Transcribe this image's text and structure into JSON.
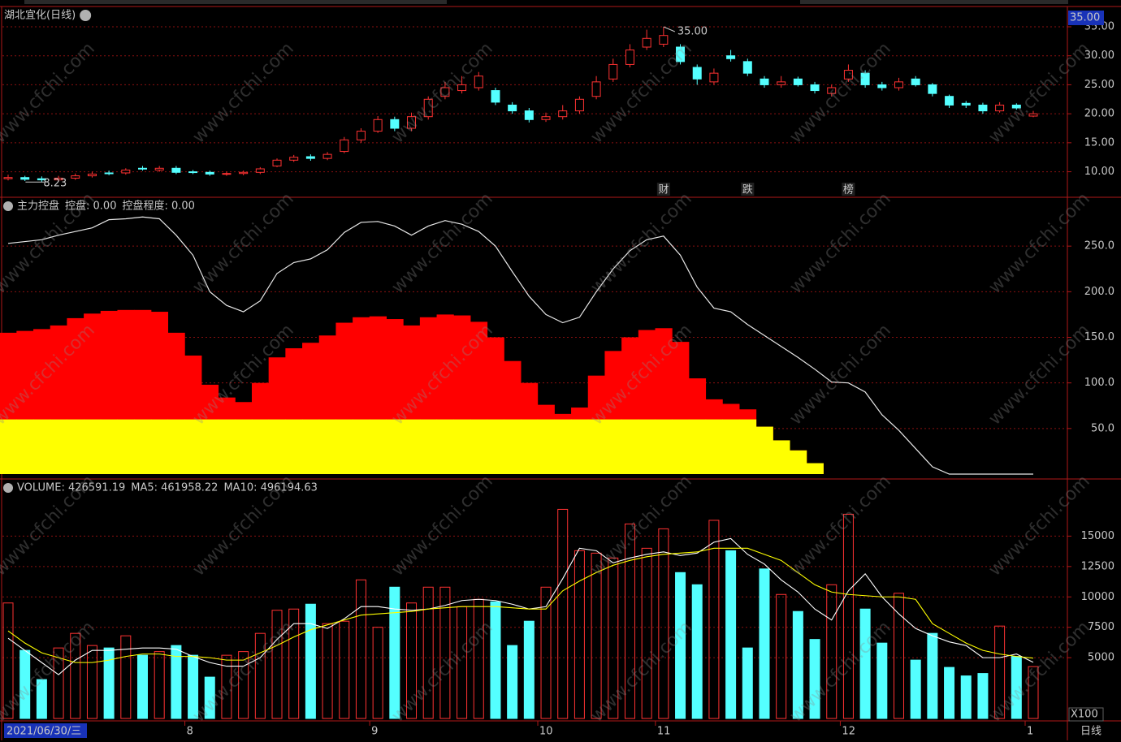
{
  "chart_data": [
    {
      "type": "candlestick",
      "title": "湖北宜化(日线)",
      "open": [
        8.8,
        9.0,
        8.8,
        8.6,
        8.9,
        9.3,
        9.8,
        9.8,
        10.6,
        10.3,
        10.6,
        10.0,
        9.9,
        9.6,
        9.7,
        9.9,
        11.0,
        12.0,
        12.6,
        12.3,
        13.5,
        15.5,
        17.0,
        19.0,
        17.5,
        19.5,
        23.0,
        24.0,
        24.5,
        24.0,
        21.5,
        20.5,
        19.0,
        19.5,
        20.5,
        23.0,
        26.0,
        28.5,
        31.5,
        32.0,
        31.5,
        28.0,
        25.5,
        30.0,
        29.0,
        26.0,
        25.0,
        26.0,
        25.0,
        23.5,
        26.0,
        27.0,
        25.0,
        24.5,
        26.0,
        25.0,
        23.0,
        21.8,
        21.5,
        20.5,
        21.5,
        19.6
      ],
      "high": [
        9.5,
        9.3,
        9.2,
        9.3,
        9.7,
        10.0,
        10.2,
        10.6,
        11.0,
        11.0,
        11.0,
        10.3,
        10.2,
        10.0,
        10.2,
        10.8,
        12.3,
        12.9,
        13.0,
        13.4,
        16.0,
        17.5,
        19.6,
        19.5,
        20.2,
        23.0,
        25.5,
        26.5,
        27.2,
        24.5,
        22.0,
        21.0,
        20.2,
        21.5,
        23.0,
        26.5,
        29.5,
        32.0,
        34.5,
        35.0,
        32.0,
        28.5,
        27.8,
        31.0,
        29.5,
        26.5,
        26.5,
        26.4,
        25.5,
        25.0,
        28.5,
        27.5,
        25.5,
        26.2,
        26.5,
        25.3,
        23.3,
        22.2,
        21.9,
        22.0,
        21.8,
        20.5
      ],
      "low": [
        8.5,
        8.4,
        8.23,
        8.3,
        8.6,
        9.0,
        9.4,
        9.5,
        10.2,
        10.0,
        9.6,
        9.6,
        9.3,
        9.3,
        9.4,
        9.6,
        10.8,
        11.7,
        11.9,
        12.0,
        13.2,
        15.0,
        16.7,
        17.0,
        17.0,
        19.0,
        22.5,
        23.5,
        24.0,
        21.5,
        20.0,
        18.5,
        18.6,
        19.0,
        20.0,
        22.5,
        25.5,
        28.0,
        31.0,
        31.5,
        28.5,
        25.0,
        25.0,
        29.0,
        26.5,
        24.5,
        24.5,
        24.7,
        23.5,
        23.0,
        25.5,
        24.5,
        24.0,
        24.0,
        24.7,
        23.0,
        21.0,
        21.0,
        20.0,
        20.2,
        20.7,
        19.4
      ],
      "close": [
        9.0,
        8.7,
        8.6,
        8.9,
        9.3,
        9.6,
        9.7,
        10.3,
        10.5,
        10.6,
        9.9,
        9.9,
        9.6,
        9.7,
        9.9,
        10.5,
        12.0,
        12.5,
        12.3,
        13.0,
        15.5,
        17.0,
        19.0,
        17.5,
        19.5,
        22.5,
        24.5,
        25.0,
        26.5,
        22.0,
        20.5,
        19.0,
        19.5,
        20.5,
        22.5,
        25.5,
        28.5,
        31.0,
        33.0,
        33.5,
        29.0,
        26.0,
        27.0,
        29.5,
        27.0,
        25.0,
        25.5,
        25.0,
        24.0,
        24.5,
        27.5,
        25.0,
        24.5,
        25.5,
        25.0,
        23.5,
        21.5,
        21.5,
        20.5,
        21.5,
        21.0,
        20.0
      ],
      "up_color": "#ff3232",
      "down_color": "#54ffff",
      "ylim": [
        5.6,
        38.5
      ],
      "yticks": [
        {
          "value": 10,
          "label": "10.00"
        },
        {
          "value": 15,
          "label": "15.00"
        },
        {
          "value": 20,
          "label": "20.00"
        },
        {
          "value": 25,
          "label": "25.00"
        },
        {
          "value": 30,
          "label": "30.00"
        },
        {
          "value": 35,
          "label": "35.00"
        }
      ],
      "grid": true,
      "low_label": {
        "index": 2,
        "label": "8.23"
      },
      "high_label": {
        "index": 39,
        "label": "35.00"
      },
      "events": [
        {
          "index": 39,
          "label": "财",
          "color": "#6b9bff"
        },
        {
          "index": 44,
          "label": "跌",
          "color": "#30d030"
        },
        {
          "index": 50,
          "label": "榜",
          "color": "#ff9a3a"
        }
      ],
      "price_box": "35.00"
    },
    {
      "type": "area_line",
      "header": [
        {
          "text": "主力控盘",
          "color": "#d8d8d8"
        },
        {
          "text": "控盘: 0.00",
          "color": "#ffffff"
        },
        {
          "text": "控盘程度: 0.00",
          "color": "#ffff00"
        }
      ],
      "series": [
        {
          "style": "area",
          "color": "#ff0000",
          "values": [
            155,
            157,
            159,
            163,
            171,
            176,
            179,
            180,
            180,
            178,
            155,
            130,
            98,
            84,
            79,
            100,
            128,
            138,
            144,
            152,
            166,
            172,
            173,
            170,
            163,
            172,
            175,
            174,
            167,
            150,
            124,
            100,
            76,
            66,
            73,
            108,
            135,
            150,
            158,
            160,
            145,
            105,
            82,
            77,
            71,
            52,
            37,
            26,
            12,
            0,
            0,
            0,
            0,
            0,
            0,
            0,
            0,
            0,
            0,
            0,
            0,
            0
          ]
        },
        {
          "style": "area",
          "color": "#ffff00",
          "values": [
            60,
            60,
            60,
            60,
            60,
            60,
            60,
            60,
            60,
            60,
            60,
            60,
            60,
            60,
            60,
            60,
            60,
            60,
            60,
            60,
            60,
            60,
            60,
            60,
            60,
            60,
            60,
            60,
            60,
            60,
            60,
            60,
            60,
            60,
            60,
            60,
            60,
            60,
            60,
            60,
            60,
            60,
            60,
            60,
            60,
            52,
            37,
            26,
            12,
            0,
            0,
            0,
            0,
            0,
            0,
            0,
            0,
            0,
            0,
            0,
            0,
            0
          ]
        },
        {
          "style": "line",
          "color": "#e8e8e8",
          "values": [
            253,
            255,
            257,
            262,
            266,
            270,
            279,
            280,
            282,
            280,
            262,
            240,
            200,
            185,
            178,
            190,
            220,
            232,
            236,
            246,
            265,
            276,
            277,
            272,
            262,
            272,
            278,
            274,
            266,
            250,
            222,
            195,
            175,
            166,
            172,
            200,
            225,
            245,
            257,
            261,
            240,
            205,
            182,
            178,
            164,
            152,
            140,
            128,
            115,
            101,
            100,
            90,
            65,
            48,
            28,
            8,
            0,
            0,
            0,
            0,
            0,
            0
          ]
        }
      ],
      "ylim": [
        0,
        300
      ],
      "yticks": [
        {
          "value": 50,
          "label": "50.0"
        },
        {
          "value": 100,
          "label": "100.0"
        },
        {
          "value": 150,
          "label": "150.0"
        },
        {
          "value": 200,
          "label": "200.0"
        },
        {
          "value": 250,
          "label": "250.0"
        }
      ],
      "grid": true
    },
    {
      "type": "volume",
      "header": [
        {
          "text": "VOLUME: 426591.19",
          "color": "#d8d8d8"
        },
        {
          "text": "MA5: 461958.22",
          "color": "#ffffff"
        },
        {
          "text": "MA10: 496194.63",
          "color": "#ffff00"
        }
      ],
      "values": [
        9500,
        5600,
        3200,
        5800,
        7000,
        6000,
        5800,
        6800,
        5200,
        5500,
        6000,
        5200,
        3400,
        5200,
        5500,
        7000,
        8900,
        9000,
        9400,
        7800,
        8000,
        11400,
        7500,
        10800,
        9500,
        10800,
        10800,
        9200,
        9800,
        9600,
        6000,
        8000,
        10800,
        17200,
        13800,
        13600,
        13200,
        16000,
        14000,
        15600,
        12000,
        11000,
        16300,
        13800,
        5800,
        12300,
        10200,
        8800,
        6500,
        11000,
        16800,
        9000,
        6200,
        10300,
        4800,
        7000,
        4200,
        3500,
        3700,
        7600,
        5100,
        4266
      ],
      "ma": [
        {
          "color": "#ffffff",
          "values": [
            6600,
            5600,
            4600,
            3600,
            4800,
            5600,
            5600,
            5700,
            5800,
            5800,
            5700,
            5100,
            4600,
            4300,
            4300,
            5000,
            6500,
            7800,
            7800,
            7400,
            8200,
            9200,
            9200,
            9000,
            8900,
            9000,
            9300,
            9700,
            9800,
            9700,
            9400,
            9000,
            9200,
            11500,
            14000,
            13800,
            12800,
            13200,
            13500,
            13700,
            13400,
            13600,
            14500,
            14800,
            13500,
            12700,
            11400,
            10400,
            9000,
            8100,
            10500,
            11900,
            10000,
            8600,
            7400,
            6800,
            6300,
            6000,
            5000,
            5000,
            5300,
            4620
          ]
        },
        {
          "color": "#ffff00",
          "values": [
            7200,
            6200,
            5400,
            5000,
            4600,
            4600,
            4800,
            5100,
            5300,
            5300,
            5100,
            5100,
            5000,
            4800,
            4800,
            5400,
            6000,
            6700,
            7300,
            7700,
            8100,
            8500,
            8600,
            8700,
            8800,
            9000,
            9100,
            9200,
            9200,
            9200,
            9100,
            9000,
            9000,
            10500,
            11300,
            12000,
            12600,
            13000,
            13300,
            13500,
            13600,
            13700,
            14000,
            14000,
            14000,
            13500,
            13000,
            12000,
            11000,
            10400,
            10200,
            10100,
            10000,
            10000,
            9800,
            7800,
            7000,
            6200,
            5600,
            5300,
            5100,
            4962
          ]
        }
      ],
      "ylim": [
        0,
        19500
      ],
      "yticks": [
        5000,
        7500,
        10000,
        12500,
        15000
      ],
      "grid": true,
      "unit_label": "X100"
    }
  ],
  "x_axis": {
    "categories": [
      "2021/06/30/三",
      null,
      null,
      null,
      null,
      null,
      null,
      null,
      null,
      null,
      null,
      "8",
      null,
      null,
      null,
      null,
      null,
      null,
      null,
      null,
      null,
      null,
      "9",
      null,
      null,
      null,
      null,
      null,
      null,
      null,
      null,
      null,
      "10",
      null,
      null,
      null,
      null,
      null,
      null,
      "11",
      null,
      null,
      null,
      null,
      null,
      null,
      null,
      null,
      null,
      null,
      "12",
      null,
      null,
      null,
      null,
      null,
      null,
      null,
      null,
      null,
      null,
      "1"
    ],
    "period": "日线"
  },
  "watermark": "www.cfchi.com"
}
